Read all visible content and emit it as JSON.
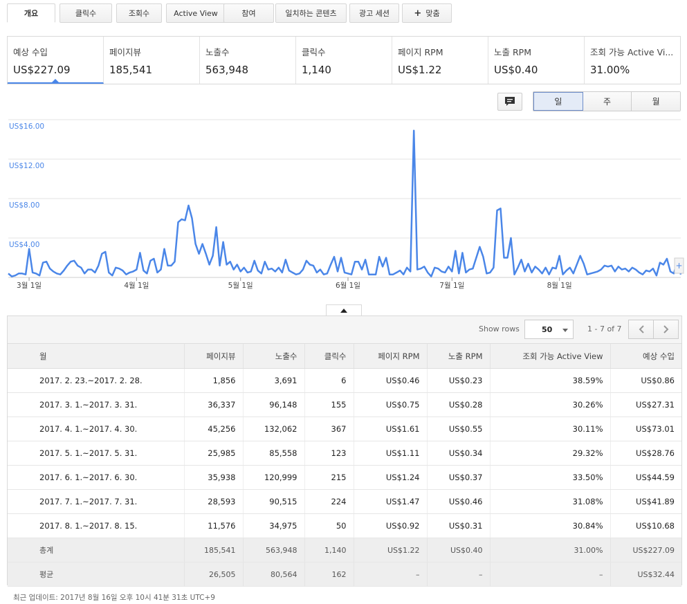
{
  "tabs": [
    {
      "label": "개요",
      "active": true
    },
    {
      "label": "클릭수"
    },
    {
      "label": "조회수"
    },
    {
      "label": "Active View"
    },
    {
      "label": "참여"
    },
    {
      "label": "일치하는 콘텐츠"
    },
    {
      "label": "광고 세션"
    },
    {
      "label": "맞춤",
      "icon": "plus-icon"
    }
  ],
  "metrics": [
    {
      "label": "예상 수입",
      "value": "US$227.09",
      "active": true
    },
    {
      "label": "페이지뷰",
      "value": "185,541"
    },
    {
      "label": "노출수",
      "value": "563,948"
    },
    {
      "label": "클릭수",
      "value": "1,140"
    },
    {
      "label": "페이지 RPM",
      "value": "US$1.22"
    },
    {
      "label": "노출 RPM",
      "value": "US$0.40"
    },
    {
      "label": "조회 가능 Active Vi...",
      "value": "31.00%"
    }
  ],
  "period": {
    "options": [
      "일",
      "주",
      "월"
    ],
    "selected": "일"
  },
  "chart_data": {
    "type": "line",
    "x_start": "2017-02-23",
    "x_end": "2017-08-15",
    "ylim": [
      0,
      16
    ],
    "y_ticks": [
      "US$4.00",
      "US$8.00",
      "US$12.00",
      "US$16.00"
    ],
    "x_tick_labels": [
      "3월 1일",
      "4월 1일",
      "5월 1일",
      "6월 1일",
      "7월 1일",
      "8월 1일"
    ],
    "color": "#4a86e8",
    "grid": true,
    "series": [
      {
        "values": [
          0.4,
          0.1,
          0.2,
          0.4,
          0.4,
          0.3,
          2.9,
          0.5,
          0.4,
          0.2,
          1.5,
          1.6,
          0.9,
          0.6,
          0.4,
          0.3,
          0.7,
          1.2,
          1.6,
          1.7,
          1.2,
          1.0,
          0.4,
          0.8,
          0.8,
          0.5,
          1.2,
          2.4,
          2.6,
          0.5,
          0.2,
          1.0,
          0.9,
          0.7,
          0.3,
          0.5,
          0.6,
          0.8,
          2.5,
          0.7,
          0.4,
          1.7,
          1.9,
          0.5,
          0.8,
          2.9,
          1.2,
          1.2,
          1.6,
          5.6,
          5.9,
          5.8,
          7.3,
          6.0,
          3.4,
          2.4,
          3.4,
          2.4,
          1.3,
          2.2,
          5.1,
          1.2,
          3.6,
          1.3,
          1.6,
          0.8,
          1.3,
          0.6,
          1.0,
          0.5,
          0.6,
          1.7,
          0.7,
          0.4,
          1.6,
          0.8,
          0.9,
          0.6,
          1.0,
          0.5,
          1.8,
          0.7,
          0.5,
          0.3,
          0.4,
          0.8,
          1.7,
          1.3,
          1.2,
          0.5,
          0.8,
          0.3,
          0.4,
          1.3,
          2.1,
          0.6,
          2.0,
          0.5,
          0.4,
          0.3,
          1.6,
          1.6,
          0.8,
          1.8,
          0.3,
          0.3,
          0.3,
          2.1,
          1.1,
          2.0,
          0.3,
          0.3,
          0.5,
          0.7,
          0.3,
          1.0,
          0.6,
          14.9,
          0.8,
          0.9,
          1.1,
          0.5,
          0.1,
          1.0,
          0.9,
          0.6,
          0.5,
          1.1,
          0.6,
          2.7,
          0.4,
          2.5,
          0.5,
          0.8,
          0.9,
          2.0,
          3.1,
          2.1,
          0.4,
          0.5,
          1.0,
          6.8,
          7.0,
          2.0,
          2.0,
          4.0,
          0.3,
          1.0,
          1.8,
          0.6,
          1.4,
          0.5,
          1.1,
          0.8,
          0.4,
          1.0,
          0.3,
          1.0,
          0.9,
          2.2,
          0.3,
          0.7,
          1.0,
          0.4,
          1.3,
          2.2,
          1.4,
          0.3,
          0.4,
          0.5,
          0.6,
          0.8,
          1.2,
          1.1,
          1.2,
          0.6,
          1.1,
          0.8,
          0.9,
          0.6,
          1.0,
          0.8,
          0.5,
          0.3,
          0.7,
          0.6,
          0.9,
          0.2,
          1.5,
          1.3,
          1.9,
          0.6,
          0.4,
          1.7,
          0.3
        ]
      }
    ]
  },
  "table": {
    "show_rows_label": "Show rows",
    "rows_value": "50",
    "range_label": "1 - 7 of 7",
    "headers": [
      "월",
      "페이지뷰",
      "노출수",
      "클릭수",
      "페이지 RPM",
      "노출 RPM",
      "조회 가능 Active View",
      "예상 수입"
    ],
    "rows": [
      [
        "2017. 2. 23.~2017. 2. 28.",
        "1,856",
        "3,691",
        "6",
        "US$0.46",
        "US$0.23",
        "38.59%",
        "US$0.86"
      ],
      [
        "2017. 3. 1.~2017. 3. 31.",
        "36,337",
        "96,148",
        "155",
        "US$0.75",
        "US$0.28",
        "30.26%",
        "US$27.31"
      ],
      [
        "2017. 4. 1.~2017. 4. 30.",
        "45,256",
        "132,062",
        "367",
        "US$1.61",
        "US$0.55",
        "30.11%",
        "US$73.01"
      ],
      [
        "2017. 5. 1.~2017. 5. 31.",
        "25,985",
        "85,558",
        "123",
        "US$1.11",
        "US$0.34",
        "29.32%",
        "US$28.76"
      ],
      [
        "2017. 6. 1.~2017. 6. 30.",
        "35,938",
        "120,999",
        "215",
        "US$1.24",
        "US$0.37",
        "33.50%",
        "US$44.59"
      ],
      [
        "2017. 7. 1.~2017. 7. 31.",
        "28,593",
        "90,515",
        "224",
        "US$1.47",
        "US$0.46",
        "31.08%",
        "US$41.89"
      ],
      [
        "2017. 8. 1.~2017. 8. 15.",
        "11,576",
        "34,975",
        "50",
        "US$0.92",
        "US$0.31",
        "30.84%",
        "US$10.68"
      ]
    ],
    "totals": [
      "총계",
      "185,541",
      "563,948",
      "1,140",
      "US$1.22",
      "US$0.40",
      "31.00%",
      "US$227.09"
    ],
    "averages": [
      "평균",
      "26,505",
      "80,564",
      "162",
      "–",
      "–",
      "–",
      "US$32.44"
    ]
  },
  "footer": "최근 업데이트: 2017년 8월 16일 오후 10시 41분 31초 UTC+9"
}
